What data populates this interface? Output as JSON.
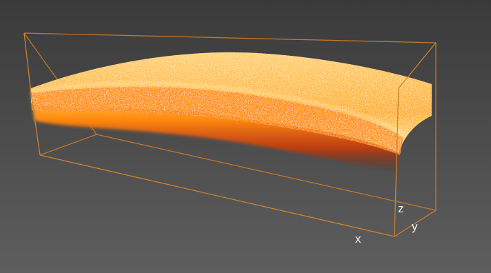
{
  "axes": {
    "x": "x",
    "y": "y",
    "z": "z"
  }
}
